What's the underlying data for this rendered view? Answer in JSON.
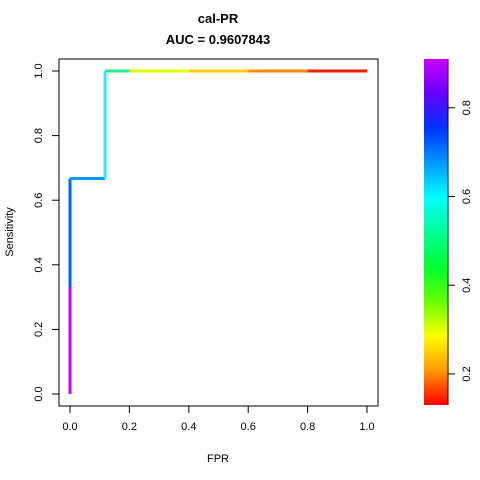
{
  "chart_data": {
    "type": "line",
    "title": "cal-PR",
    "subtitle": "AUC = 0.9607843",
    "xlabel": "FPR",
    "ylabel": "Sensitivity",
    "xlim": [
      0,
      1
    ],
    "ylim": [
      0,
      1
    ],
    "x_ticks": [
      "0.0",
      "0.2",
      "0.4",
      "0.6",
      "0.8",
      "1.0"
    ],
    "y_ticks": [
      "0.0",
      "0.2",
      "0.4",
      "0.6",
      "0.8",
      "1.0"
    ],
    "grid": false,
    "curve": {
      "points": [
        {
          "x": 0.0,
          "y": 0.0
        },
        {
          "x": 0.0,
          "y": 0.333
        },
        {
          "x": 0.0,
          "y": 0.667
        },
        {
          "x": 0.118,
          "y": 0.667
        },
        {
          "x": 0.118,
          "y": 1.0
        },
        {
          "x": 0.2,
          "y": 1.0
        },
        {
          "x": 0.4,
          "y": 1.0
        },
        {
          "x": 0.6,
          "y": 1.0
        },
        {
          "x": 0.8,
          "y": 1.0
        },
        {
          "x": 1.0,
          "y": 1.0
        }
      ],
      "segment_colors": [
        "#cc00ff",
        "#0066ff",
        "#0099ff",
        "#33e5ff",
        "#22ee88",
        "#ddff00",
        "#ffcc00",
        "#ff8800",
        "#ee2200"
      ]
    },
    "colorbar": {
      "range": [
        0.13,
        0.91
      ],
      "ticks": [
        {
          "value": 0.2,
          "label": "0.2"
        },
        {
          "value": 0.4,
          "label": "0.4"
        },
        {
          "value": 0.6,
          "label": "0.6"
        },
        {
          "value": 0.8,
          "label": "0.8"
        }
      ],
      "gradient_stops": [
        "#ff0000",
        "#ff9900",
        "#ffff00",
        "#66ff00",
        "#00ff33",
        "#00ff99",
        "#00ffff",
        "#0099ff",
        "#0033ff",
        "#6600ff",
        "#cc00ff"
      ]
    }
  }
}
